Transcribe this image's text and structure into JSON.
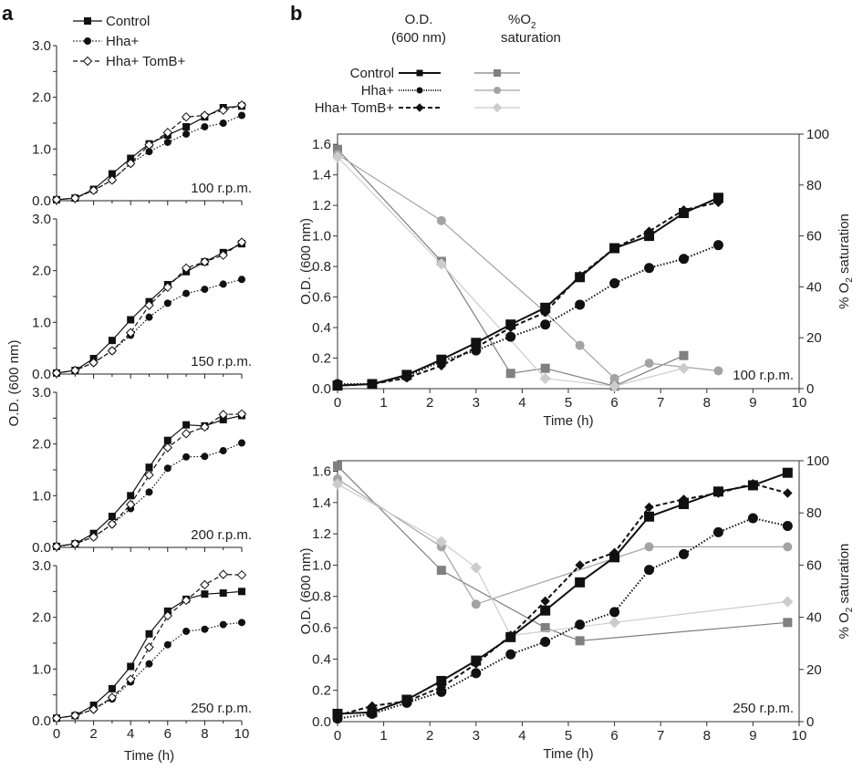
{
  "panel_labels": [
    "a",
    "b"
  ],
  "legend_a": [
    "Control",
    "Hha+",
    "Hha+ TomB+"
  ],
  "legend_b": {
    "od_header": [
      "O.D.",
      "(600 nm)"
    ],
    "o2_header": [
      "%O",
      "2",
      "saturation"
    ],
    "rows": [
      "Control",
      "Hha+",
      "Hha+ TomB+"
    ]
  },
  "colors": {
    "od": "#111111",
    "o2_control": "#808080",
    "o2_hha": "#a3a3a3",
    "o2_tomb": "#cccccc"
  },
  "chart_data": [
    {
      "type": "line",
      "panel": "a",
      "annotation": "100 r.p.m.",
      "xlim": [
        0,
        10
      ],
      "ylim": [
        0,
        3
      ],
      "xticks": [
        0,
        2,
        4,
        6,
        8,
        10
      ],
      "yticks": [
        "0.0",
        "1.0",
        "2.0",
        "3.0"
      ],
      "x": [
        0,
        1,
        2,
        3,
        4,
        5,
        6,
        7,
        8,
        9,
        10
      ],
      "series": [
        {
          "name": "Control",
          "values": [
            0.02,
            0.05,
            0.22,
            0.52,
            0.82,
            1.1,
            1.27,
            1.43,
            1.62,
            1.8,
            1.83
          ]
        },
        {
          "name": "Hha+",
          "values": [
            0.02,
            0.05,
            0.2,
            0.4,
            0.72,
            0.95,
            1.13,
            1.29,
            1.43,
            1.5,
            1.65
          ]
        },
        {
          "name": "Hha+ TomB+",
          "values": [
            0.02,
            0.05,
            0.2,
            0.4,
            0.72,
            1.08,
            1.32,
            1.62,
            1.65,
            1.75,
            1.85
          ]
        }
      ]
    },
    {
      "type": "line",
      "panel": "a",
      "annotation": "150 r.p.m.",
      "xlim": [
        0,
        10
      ],
      "ylim": [
        0,
        3
      ],
      "yticks": [
        "0.0",
        "1.0",
        "2.0",
        "3.0"
      ],
      "x": [
        0,
        1,
        2,
        3,
        4,
        5,
        6,
        7,
        8,
        9,
        10
      ],
      "series": [
        {
          "name": "Control",
          "values": [
            0.02,
            0.07,
            0.3,
            0.65,
            1.05,
            1.4,
            1.73,
            1.98,
            2.17,
            2.35,
            2.52
          ]
        },
        {
          "name": "Hha+",
          "values": [
            0.02,
            0.07,
            0.22,
            0.45,
            0.75,
            1.1,
            1.37,
            1.56,
            1.64,
            1.74,
            1.83
          ]
        },
        {
          "name": "Hha+ TomB+",
          "values": [
            0.02,
            0.07,
            0.22,
            0.45,
            0.8,
            1.33,
            1.68,
            2.05,
            2.17,
            2.3,
            2.55
          ]
        }
      ]
    },
    {
      "type": "line",
      "panel": "a",
      "annotation": "200 r.p.m.",
      "xlim": [
        0,
        10
      ],
      "ylim": [
        0,
        3
      ],
      "yticks": [
        "0.0",
        "1.0",
        "2.0",
        "3.0"
      ],
      "x": [
        0,
        1,
        2,
        3,
        4,
        5,
        6,
        7,
        8,
        9,
        10
      ],
      "series": [
        {
          "name": "Control",
          "values": [
            0.02,
            0.07,
            0.27,
            0.6,
            1.0,
            1.55,
            2.07,
            2.37,
            2.35,
            2.47,
            2.55
          ]
        },
        {
          "name": "Hha+",
          "values": [
            0.02,
            0.07,
            0.2,
            0.45,
            0.75,
            1.07,
            1.53,
            1.75,
            1.76,
            1.87,
            2.02
          ]
        },
        {
          "name": "Hha+ TomB+",
          "values": [
            0.02,
            0.07,
            0.2,
            0.45,
            0.83,
            1.4,
            1.93,
            2.2,
            2.33,
            2.57,
            2.58
          ]
        }
      ]
    },
    {
      "type": "line",
      "panel": "a",
      "annotation": "250 r.p.m.",
      "xlim": [
        0,
        10
      ],
      "ylim": [
        0,
        3
      ],
      "yticks": [
        "0.0",
        "1.0",
        "2.0",
        "3.0"
      ],
      "xticks": [
        "0",
        "2",
        "4",
        "6",
        "8",
        "10"
      ],
      "xlabel": "Time (h)",
      "ylabel": "O.D. (600 nm)",
      "x": [
        0,
        1,
        2,
        3,
        4,
        5,
        6,
        7,
        8,
        9,
        10
      ],
      "series": [
        {
          "name": "Control",
          "values": [
            0.05,
            0.1,
            0.3,
            0.62,
            1.05,
            1.68,
            2.12,
            2.35,
            2.45,
            2.47,
            2.5
          ]
        },
        {
          "name": "Hha+",
          "values": [
            0.05,
            0.1,
            0.22,
            0.42,
            0.75,
            1.1,
            1.47,
            1.73,
            1.77,
            1.86,
            1.9
          ]
        },
        {
          "name": "Hha+ TomB+",
          "values": [
            0.05,
            0.1,
            0.22,
            0.45,
            0.8,
            1.42,
            2.03,
            2.33,
            2.63,
            2.83,
            2.82
          ]
        }
      ]
    },
    {
      "type": "line",
      "panel": "b",
      "annotation": "100 r.p.m.",
      "xlim": [
        0,
        10
      ],
      "ylim": [
        0,
        1.667
      ],
      "y2lim": [
        0,
        100
      ],
      "xticks": [
        "0",
        "1",
        "2",
        "3",
        "4",
        "5",
        "6",
        "7",
        "8",
        "9",
        "10"
      ],
      "yticks": [
        "0.0",
        "0.2",
        "0.4",
        "0.6",
        "0.8",
        "1.0",
        "1.2",
        "1.4",
        "1.6"
      ],
      "y2ticks": [
        "0",
        "20",
        "40",
        "60",
        "80",
        "100"
      ],
      "xlabel": "Time (h)",
      "ylabel": "O.D. (600 nm)",
      "y2label": "% O2 saturation",
      "od_series": [
        {
          "name": "Control",
          "x": [
            0,
            0.75,
            1.5,
            2.25,
            3,
            3.75,
            4.5,
            5.25,
            6,
            6.75,
            7.5,
            8.25
          ],
          "values": [
            0.02,
            0.03,
            0.09,
            0.19,
            0.3,
            0.42,
            0.53,
            0.73,
            0.92,
            1.0,
            1.15,
            1.25
          ]
        },
        {
          "name": "Hha+",
          "x": [
            0,
            0.75,
            1.5,
            2.25,
            3,
            3.75,
            4.5,
            5.25,
            6,
            6.75,
            7.5,
            8.25
          ],
          "values": [
            0.03,
            0.03,
            0.08,
            0.18,
            0.25,
            0.34,
            0.42,
            0.55,
            0.69,
            0.79,
            0.85,
            0.94
          ]
        },
        {
          "name": "Hha+ TomB+",
          "x": [
            0,
            0.75,
            1.5,
            2.25,
            3,
            3.75,
            4.5,
            5.25,
            6,
            6.75,
            7.5,
            8.25
          ],
          "values": [
            0.02,
            0.03,
            0.07,
            0.15,
            0.27,
            0.4,
            0.5,
            0.74,
            0.92,
            1.03,
            1.17,
            1.22
          ]
        }
      ],
      "o2_series": [
        {
          "name": "Control",
          "x": [
            0,
            2.25,
            3.75,
            4.5,
            6,
            7.5
          ],
          "values": [
            94,
            50,
            6,
            8,
            1,
            13
          ]
        },
        {
          "name": "Hha+",
          "x": [
            0,
            2.25,
            4.5,
            5.25,
            6,
            6.75,
            8.25
          ],
          "values": [
            92,
            66,
            30,
            17,
            4,
            10,
            7
          ]
        },
        {
          "name": "Hha+ TomB+",
          "x": [
            0,
            2.25,
            4.5,
            6,
            7.5
          ],
          "values": [
            91,
            49,
            4,
            1,
            8
          ]
        }
      ]
    },
    {
      "type": "line",
      "panel": "b",
      "annotation": "250 r.p.m.",
      "xlim": [
        0,
        10
      ],
      "ylim": [
        0,
        1.667
      ],
      "y2lim": [
        0,
        100
      ],
      "xticks": [
        "0",
        "1",
        "2",
        "3",
        "4",
        "5",
        "6",
        "7",
        "8",
        "9",
        "10"
      ],
      "yticks": [
        "0.0",
        "0.2",
        "0.4",
        "0.6",
        "0.8",
        "1.0",
        "1.2",
        "1.4",
        "1.6"
      ],
      "y2ticks": [
        "0",
        "20",
        "40",
        "60",
        "80",
        "100"
      ],
      "xlabel": "Time (h)",
      "ylabel": "O.D. (600 nm)",
      "y2label": "% O2 saturation",
      "od_series": [
        {
          "name": "Control",
          "x": [
            0,
            0.75,
            1.5,
            2.25,
            3,
            3.75,
            4.5,
            5.25,
            6,
            6.75,
            7.5,
            8.25,
            9,
            9.75
          ],
          "values": [
            0.05,
            0.06,
            0.14,
            0.26,
            0.39,
            0.54,
            0.71,
            0.89,
            1.05,
            1.31,
            1.39,
            1.47,
            1.51,
            1.59
          ]
        },
        {
          "name": "Hha+",
          "x": [
            0,
            0.75,
            1.5,
            2.25,
            3,
            3.75,
            4.5,
            5.25,
            6,
            6.75,
            7.5,
            8.25,
            9,
            9.75
          ],
          "values": [
            0.02,
            0.05,
            0.12,
            0.19,
            0.31,
            0.43,
            0.51,
            0.62,
            0.7,
            0.97,
            1.07,
            1.21,
            1.3,
            1.25
          ]
        },
        {
          "name": "Hha+ TomB+",
          "x": [
            0,
            0.75,
            1.5,
            2.25,
            3,
            3.75,
            4.5,
            5.25,
            6,
            6.75,
            7.5,
            8.25,
            9,
            9.75
          ],
          "values": [
            0.04,
            0.1,
            0.13,
            0.22,
            0.37,
            0.55,
            0.77,
            1.0,
            1.08,
            1.37,
            1.42,
            1.46,
            1.52,
            1.46
          ]
        }
      ],
      "o2_series": [
        {
          "name": "Control",
          "x": [
            0,
            2.25,
            4.5,
            5.25,
            9.75
          ],
          "values": [
            98,
            58,
            36,
            31,
            38
          ]
        },
        {
          "name": "Hha+",
          "x": [
            0,
            2.25,
            3,
            6.75,
            9.75
          ],
          "values": [
            93,
            67,
            45,
            67,
            67
          ]
        },
        {
          "name": "Hha+ TomB+",
          "x": [
            0,
            2.25,
            3,
            3.75,
            6,
            9.75
          ],
          "values": [
            91,
            69,
            59,
            33,
            38,
            46
          ]
        }
      ]
    }
  ]
}
